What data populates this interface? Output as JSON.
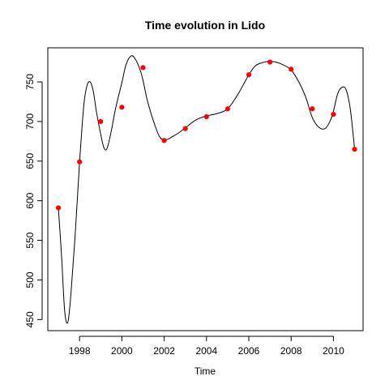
{
  "chart_data": {
    "type": "line",
    "title": "Time evolution in Lido",
    "xlabel": "Time",
    "ylabel": "",
    "xlim": [
      1996.5,
      2011.4
    ],
    "ylim": [
      436,
      793
    ],
    "xticks": [
      1998,
      2000,
      2002,
      2004,
      2006,
      2008,
      2010
    ],
    "yticks": [
      450,
      500,
      550,
      600,
      650,
      700,
      750
    ],
    "grid": false,
    "legend": "none",
    "series": [
      {
        "kind": "smooth-line",
        "color": "#000000",
        "x": [
          1997.0,
          1997.15,
          1997.3,
          1997.45,
          1997.6,
          1997.8,
          1998.0,
          1998.2,
          1998.35,
          1998.5,
          1998.65,
          1998.8,
          1999.0,
          1999.15,
          1999.3,
          1999.5,
          1999.7,
          2000.0,
          2000.2,
          2000.45,
          2000.65,
          2000.85,
          2001.0,
          2001.2,
          2001.5,
          2001.8,
          2002.1,
          2002.4,
          2002.7,
          2003.0,
          2003.5,
          2004.0,
          2004.5,
          2005.0,
          2005.5,
          2006.0,
          2006.3,
          2006.6,
          2007.0,
          2007.5,
          2008.0,
          2008.4,
          2008.7,
          2009.0,
          2009.3,
          2009.6,
          2009.85,
          2010.0,
          2010.2,
          2010.4,
          2010.6,
          2010.8,
          2011.0
        ],
        "y": [
          591,
          530,
          460,
          447,
          485,
          560,
          648,
          720,
          745,
          750,
          738,
          712,
          684,
          667,
          666,
          688,
          716,
          749,
          772,
          783,
          778,
          766,
          752,
          727,
          700,
          680,
          677,
          681,
          686,
          692,
          702,
          707,
          710,
          716,
          735,
          759,
          770,
          774,
          776,
          773,
          765,
          748,
          730,
          705,
          693,
          691,
          701,
          713,
          735,
          743,
          740,
          715,
          665
        ]
      },
      {
        "kind": "points",
        "color": "#ff0000",
        "x": [
          1997,
          1998,
          1999,
          2000,
          2001,
          2002,
          2003,
          2004,
          2005,
          2006,
          2007,
          2008,
          2009,
          2010,
          2011
        ],
        "y": [
          591,
          649,
          700,
          718,
          768,
          676,
          691,
          706,
          716,
          759,
          775,
          766,
          716,
          709,
          665
        ]
      }
    ]
  }
}
